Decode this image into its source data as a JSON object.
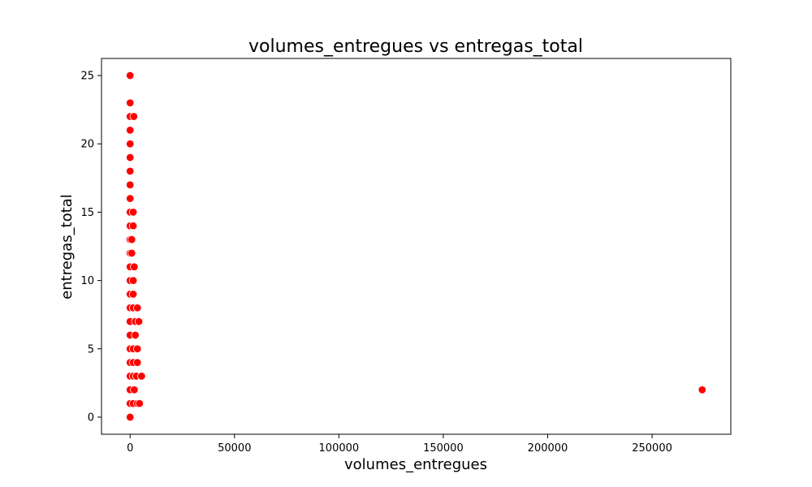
{
  "chart_data": {
    "type": "scatter",
    "title": "volumes_entregues vs entregas_total",
    "xlabel": "volumes_entregues",
    "ylabel": "entregas_total",
    "xlim": [
      -13700,
      287700
    ],
    "ylim": [
      -1.25,
      26.25
    ],
    "xticks": [
      0,
      50000,
      100000,
      150000,
      200000,
      250000
    ],
    "xtick_labels": [
      "0",
      "50000",
      "100000",
      "150000",
      "200000",
      "250000"
    ],
    "yticks": [
      0,
      5,
      10,
      15,
      20,
      25
    ],
    "ytick_labels": [
      "0",
      "5",
      "10",
      "15",
      "20",
      "25"
    ],
    "grid": false,
    "legend": "none",
    "marker_color": "#ff0000",
    "marker_edge_color": "#ffffff",
    "series": [
      {
        "points": [
          [
            0,
            25
          ],
          [
            0,
            23
          ],
          [
            0,
            22
          ],
          [
            1800,
            22
          ],
          [
            0,
            21
          ],
          [
            0,
            20
          ],
          [
            0,
            19
          ],
          [
            0,
            18
          ],
          [
            0,
            17
          ],
          [
            0,
            16
          ],
          [
            0,
            15
          ],
          [
            1500,
            15
          ],
          [
            0,
            14
          ],
          [
            1500,
            14
          ],
          [
            0,
            13
          ],
          [
            800,
            13
          ],
          [
            0,
            12
          ],
          [
            800,
            12
          ],
          [
            0,
            11
          ],
          [
            2000,
            11
          ],
          [
            0,
            10
          ],
          [
            1500,
            10
          ],
          [
            0,
            9
          ],
          [
            1500,
            9
          ],
          [
            0,
            8
          ],
          [
            1500,
            8
          ],
          [
            3500,
            8
          ],
          [
            0,
            7
          ],
          [
            2500,
            7
          ],
          [
            4200,
            7
          ],
          [
            0,
            6
          ],
          [
            2500,
            6
          ],
          [
            0,
            5
          ],
          [
            1500,
            5
          ],
          [
            3500,
            5
          ],
          [
            0,
            4
          ],
          [
            1500,
            4
          ],
          [
            3500,
            4
          ],
          [
            0,
            3
          ],
          [
            1500,
            3
          ],
          [
            3000,
            3
          ],
          [
            5500,
            3
          ],
          [
            0,
            2
          ],
          [
            2000,
            2
          ],
          [
            0,
            1
          ],
          [
            1500,
            1
          ],
          [
            3500,
            1
          ],
          [
            4500,
            1
          ],
          [
            0,
            0
          ],
          [
            274000,
            2
          ]
        ]
      }
    ]
  }
}
